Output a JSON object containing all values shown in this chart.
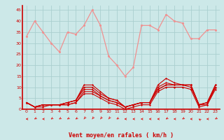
{
  "x": [
    0,
    1,
    2,
    3,
    4,
    5,
    6,
    7,
    8,
    9,
    10,
    11,
    12,
    13,
    14,
    15,
    16,
    17,
    18,
    19,
    20,
    21,
    22,
    23
  ],
  "bg_color": "#cce8e8",
  "grid_color": "#aacfcf",
  "xlabel": "Vent moyen/en rafales ( km/h )",
  "xlabel_color": "#cc0000",
  "tick_color": "#cc0000",
  "arrow_color": "#dd2222",
  "ylim": [
    0,
    47
  ],
  "xlim": [
    -0.5,
    23.5
  ],
  "yticks": [
    0,
    5,
    10,
    15,
    20,
    25,
    30,
    35,
    40,
    45
  ],
  "series_light": [
    [
      33,
      40,
      35,
      30,
      26,
      35,
      34,
      38,
      45,
      38,
      24,
      20,
      15,
      19,
      38,
      38,
      36,
      43,
      40,
      39,
      32,
      32,
      36,
      36
    ]
  ],
  "light_color": "#f09090",
  "series_dark": [
    [
      3,
      1,
      2,
      2,
      2,
      3,
      4,
      11,
      11,
      8,
      5,
      4,
      1,
      2,
      3,
      3,
      11,
      14,
      12,
      11,
      11,
      2,
      3,
      11
    ],
    [
      3,
      1,
      2,
      2,
      2,
      3,
      4,
      10,
      10,
      7,
      5,
      4,
      1,
      2,
      3,
      3,
      10,
      12,
      11,
      11,
      11,
      2,
      3,
      11
    ],
    [
      3,
      1,
      2,
      2,
      2,
      3,
      4,
      9,
      9,
      6,
      4,
      3,
      1,
      2,
      3,
      3,
      9,
      11,
      11,
      11,
      11,
      2,
      3,
      10
    ],
    [
      3,
      1,
      2,
      2,
      2,
      2,
      3,
      8,
      8,
      6,
      4,
      3,
      1,
      2,
      3,
      3,
      9,
      11,
      11,
      11,
      10,
      2,
      2,
      10
    ],
    [
      3,
      1,
      1,
      2,
      2,
      2,
      3,
      7,
      7,
      5,
      3,
      2,
      0,
      1,
      2,
      2,
      8,
      10,
      10,
      10,
      9,
      1,
      2,
      9
    ]
  ],
  "dark_color": "#cc0000",
  "wind_angles": [
    270,
    225,
    270,
    225,
    225,
    225,
    225,
    205,
    205,
    205,
    205,
    225,
    270,
    270,
    270,
    270,
    270,
    225,
    270,
    225,
    270,
    315,
    270,
    225
  ]
}
